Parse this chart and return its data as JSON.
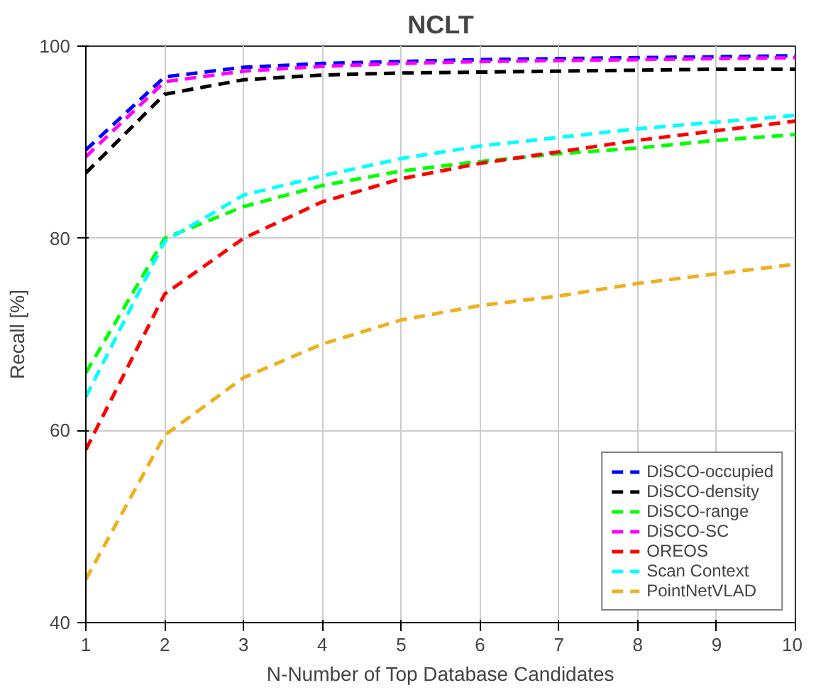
{
  "chart_data": {
    "type": "line",
    "title": "NCLT",
    "xlabel": "N-Number of Top Database Candidates",
    "ylabel": "Recall [%]",
    "x": [
      1,
      2,
      3,
      4,
      5,
      6,
      7,
      8,
      9,
      10
    ],
    "xlim": [
      1,
      10
    ],
    "xticks": [
      1,
      2,
      3,
      4,
      5,
      6,
      7,
      8,
      9,
      10
    ],
    "ylim": [
      40,
      100
    ],
    "yticks": [
      40,
      60,
      80,
      100
    ],
    "grid": true,
    "legend": "bottom right",
    "line_style": "dashed",
    "marker": "none",
    "series": [
      {
        "name": "DiSCO-occupied",
        "color": "#0000ff",
        "values": [
          89.2,
          96.8,
          97.8,
          98.2,
          98.4,
          98.6,
          98.7,
          98.8,
          98.9,
          99.0
        ]
      },
      {
        "name": "DiSCO-density",
        "color": "#000000",
        "values": [
          86.8,
          95.0,
          96.5,
          97.0,
          97.2,
          97.3,
          97.4,
          97.5,
          97.6,
          97.6
        ]
      },
      {
        "name": "DiSCO-range",
        "color": "#00ff00",
        "values": [
          66.0,
          80.0,
          83.3,
          85.5,
          87.0,
          88.0,
          88.8,
          89.4,
          90.2,
          90.8
        ]
      },
      {
        "name": "DiSCO-SC",
        "color": "#ff00ff",
        "values": [
          88.5,
          96.3,
          97.4,
          97.9,
          98.2,
          98.4,
          98.5,
          98.6,
          98.7,
          98.8
        ]
      },
      {
        "name": "OREOS",
        "color": "#ff0000",
        "values": [
          58.0,
          74.2,
          80.0,
          83.8,
          86.2,
          87.8,
          89.0,
          90.2,
          91.2,
          92.2
        ]
      },
      {
        "name": "Scan Context",
        "color": "#00ffff",
        "values": [
          63.5,
          79.7,
          84.5,
          86.5,
          88.3,
          89.6,
          90.5,
          91.4,
          92.1,
          92.8
        ]
      },
      {
        "name": "PointNetVLAD",
        "color": "#edb120",
        "values": [
          44.5,
          59.5,
          65.5,
          69.0,
          71.5,
          73.0,
          74.0,
          75.3,
          76.3,
          77.3
        ]
      }
    ]
  }
}
